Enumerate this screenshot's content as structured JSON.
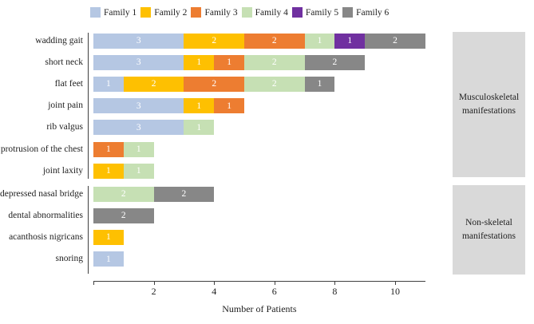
{
  "chart_data": {
    "type": "bar",
    "orientation": "horizontal",
    "stacked": true,
    "xlabel": "Number of Patients",
    "xlim": [
      0,
      11
    ],
    "x_ticks": [
      2,
      4,
      6,
      8,
      10
    ],
    "legend_position": "top",
    "grid": false,
    "families": [
      {
        "name": "Family 1",
        "color": "#b5c7e3"
      },
      {
        "name": "Family 2",
        "color": "#fec001"
      },
      {
        "name": "Family 3",
        "color": "#ed7d31"
      },
      {
        "name": "Family 4",
        "color": "#c6e0b4"
      },
      {
        "name": "Family 5",
        "color": "#7030a0"
      },
      {
        "name": "Family 6",
        "color": "#878787"
      }
    ],
    "groups": [
      {
        "label": "Musculoskeletal manifestations",
        "rows": [
          {
            "category": "wadding gait",
            "segments": [
              {
                "family": "Family 1",
                "value": 3
              },
              {
                "family": "Family 2",
                "value": 2
              },
              {
                "family": "Family 3",
                "value": 2
              },
              {
                "family": "Family 4",
                "value": 1
              },
              {
                "family": "Family 5",
                "value": 1
              },
              {
                "family": "Family 6",
                "value": 2
              }
            ]
          },
          {
            "category": "short neck",
            "segments": [
              {
                "family": "Family 1",
                "value": 3
              },
              {
                "family": "Family 2",
                "value": 1
              },
              {
                "family": "Family 3",
                "value": 1
              },
              {
                "family": "Family 4",
                "value": 2
              },
              {
                "family": "Family 6",
                "value": 2
              }
            ]
          },
          {
            "category": "flat feet",
            "segments": [
              {
                "family": "Family 1",
                "value": 1
              },
              {
                "family": "Family 2",
                "value": 2
              },
              {
                "family": "Family 3",
                "value": 2
              },
              {
                "family": "Family 4",
                "value": 2
              },
              {
                "family": "Family 6",
                "value": 1
              }
            ]
          },
          {
            "category": "joint pain",
            "segments": [
              {
                "family": "Family 1",
                "value": 3
              },
              {
                "family": "Family 2",
                "value": 1
              },
              {
                "family": "Family 3",
                "value": 1
              }
            ]
          },
          {
            "category": "rib valgus",
            "segments": [
              {
                "family": "Family 1",
                "value": 3
              },
              {
                "family": "Family 4",
                "value": 1
              }
            ]
          },
          {
            "category": "protrusion of the chest",
            "segments": [
              {
                "family": "Family 3",
                "value": 1
              },
              {
                "family": "Family 4",
                "value": 1
              }
            ]
          },
          {
            "category": "joint laxity",
            "segments": [
              {
                "family": "Family 2",
                "value": 1
              },
              {
                "family": "Family 4",
                "value": 1
              }
            ]
          }
        ]
      },
      {
        "label": "Non-skeletal manifestations",
        "rows": [
          {
            "category": "depressed nasal bridge",
            "segments": [
              {
                "family": "Family 4",
                "value": 2
              },
              {
                "family": "Family 6",
                "value": 2
              }
            ]
          },
          {
            "category": "dental abnormalities",
            "segments": [
              {
                "family": "Family 6",
                "value": 2
              }
            ]
          },
          {
            "category": "acanthosis nigricans",
            "segments": [
              {
                "family": "Family 2",
                "value": 1
              }
            ]
          },
          {
            "category": "snoring",
            "segments": [
              {
                "family": "Family 1",
                "value": 1
              }
            ]
          }
        ]
      }
    ]
  }
}
